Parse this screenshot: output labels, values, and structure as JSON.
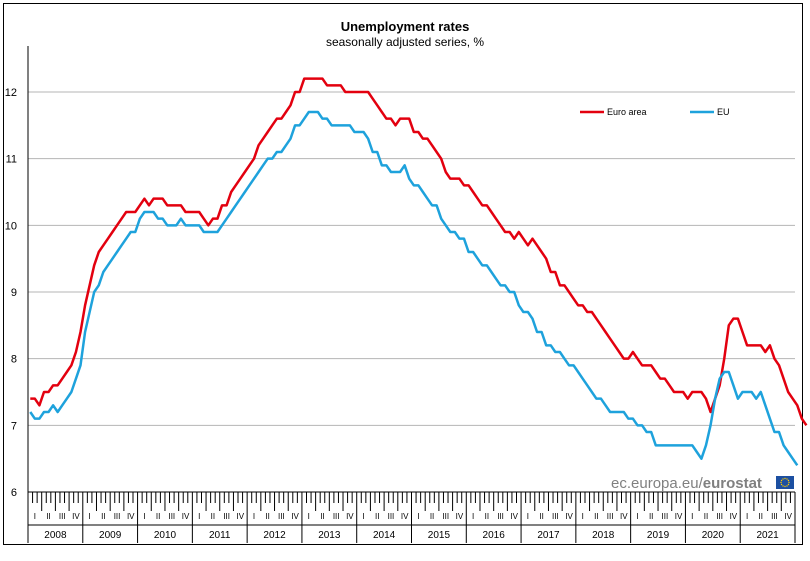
{
  "chart_data": {
    "type": "line",
    "title": "Unemployment rates",
    "subtitle": "seasonally adjusted series, %",
    "xlabel": "",
    "ylabel": "",
    "ylim": [
      6,
      12.6
    ],
    "yticks": [
      6,
      7,
      8,
      9,
      10,
      11,
      12
    ],
    "grid": true,
    "legend": "top-right",
    "x_start": "2008-01",
    "years": [
      "2008",
      "2009",
      "2010",
      "2011",
      "2012",
      "2013",
      "2014",
      "2015",
      "2016",
      "2017",
      "2018",
      "2019",
      "2020",
      "2021"
    ],
    "quarters": [
      "I",
      "II",
      "III",
      "IV"
    ],
    "series": [
      {
        "name": "Euro area",
        "color": "#e3000f",
        "values": [
          7.4,
          7.4,
          7.3,
          7.5,
          7.5,
          7.6,
          7.6,
          7.7,
          7.8,
          7.9,
          8.1,
          8.4,
          8.8,
          9.1,
          9.4,
          9.6,
          9.7,
          9.8,
          9.9,
          10.0,
          10.1,
          10.2,
          10.2,
          10.2,
          10.3,
          10.4,
          10.3,
          10.4,
          10.4,
          10.4,
          10.3,
          10.3,
          10.3,
          10.3,
          10.2,
          10.2,
          10.2,
          10.2,
          10.1,
          10.0,
          10.1,
          10.1,
          10.3,
          10.3,
          10.5,
          10.6,
          10.7,
          10.8,
          10.9,
          11.0,
          11.2,
          11.3,
          11.4,
          11.5,
          11.6,
          11.6,
          11.7,
          11.8,
          12.0,
          12.0,
          12.2,
          12.2,
          12.2,
          12.2,
          12.2,
          12.1,
          12.1,
          12.1,
          12.1,
          12.0,
          12.0,
          12.0,
          12.0,
          12.0,
          12.0,
          11.9,
          11.8,
          11.7,
          11.6,
          11.6,
          11.5,
          11.6,
          11.6,
          11.6,
          11.4,
          11.4,
          11.3,
          11.3,
          11.2,
          11.1,
          11.0,
          10.8,
          10.7,
          10.7,
          10.7,
          10.6,
          10.6,
          10.5,
          10.4,
          10.3,
          10.3,
          10.2,
          10.1,
          10.0,
          9.9,
          9.9,
          9.8,
          9.9,
          9.8,
          9.7,
          9.8,
          9.7,
          9.6,
          9.5,
          9.3,
          9.3,
          9.1,
          9.1,
          9.0,
          8.9,
          8.8,
          8.8,
          8.7,
          8.7,
          8.6,
          8.5,
          8.4,
          8.3,
          8.2,
          8.1,
          8.0,
          8.0,
          8.1,
          8.0,
          7.9,
          7.9,
          7.9,
          7.8,
          7.7,
          7.7,
          7.6,
          7.5,
          7.5,
          7.5,
          7.4,
          7.5,
          7.5,
          7.5,
          7.4,
          7.2,
          7.4,
          7.6,
          8.0,
          8.5,
          8.6,
          8.6,
          8.4,
          8.2,
          8.2,
          8.2,
          8.2,
          8.1,
          8.2,
          8.0,
          7.9,
          7.7,
          7.5,
          7.4,
          7.3,
          7.1,
          7.0
        ]
      },
      {
        "name": "EU",
        "color": "#1ea2dc",
        "values": [
          7.2,
          7.1,
          7.1,
          7.2,
          7.2,
          7.3,
          7.2,
          7.3,
          7.4,
          7.5,
          7.7,
          7.9,
          8.4,
          8.7,
          9.0,
          9.1,
          9.3,
          9.4,
          9.5,
          9.6,
          9.7,
          9.8,
          9.9,
          9.9,
          10.1,
          10.2,
          10.2,
          10.2,
          10.1,
          10.1,
          10.0,
          10.0,
          10.0,
          10.1,
          10.0,
          10.0,
          10.0,
          10.0,
          9.9,
          9.9,
          9.9,
          9.9,
          10.0,
          10.1,
          10.2,
          10.3,
          10.4,
          10.5,
          10.6,
          10.7,
          10.8,
          10.9,
          11.0,
          11.0,
          11.1,
          11.1,
          11.2,
          11.3,
          11.5,
          11.5,
          11.6,
          11.7,
          11.7,
          11.7,
          11.6,
          11.6,
          11.5,
          11.5,
          11.5,
          11.5,
          11.5,
          11.4,
          11.4,
          11.4,
          11.3,
          11.1,
          11.1,
          10.9,
          10.9,
          10.8,
          10.8,
          10.8,
          10.9,
          10.7,
          10.6,
          10.6,
          10.5,
          10.4,
          10.3,
          10.3,
          10.1,
          10.0,
          9.9,
          9.9,
          9.8,
          9.8,
          9.6,
          9.6,
          9.5,
          9.4,
          9.4,
          9.3,
          9.2,
          9.1,
          9.1,
          9.0,
          9.0,
          8.8,
          8.7,
          8.7,
          8.6,
          8.4,
          8.4,
          8.2,
          8.2,
          8.1,
          8.1,
          8.0,
          7.9,
          7.9,
          7.8,
          7.7,
          7.6,
          7.5,
          7.4,
          7.4,
          7.3,
          7.2,
          7.2,
          7.2,
          7.2,
          7.1,
          7.1,
          7.0,
          7.0,
          6.9,
          6.9,
          6.7,
          6.7,
          6.7,
          6.7,
          6.7,
          6.7,
          6.7,
          6.7,
          6.7,
          6.6,
          6.5,
          6.7,
          7.0,
          7.4,
          7.7,
          7.8,
          7.8,
          7.6,
          7.4,
          7.5,
          7.5,
          7.5,
          7.4,
          7.5,
          7.3,
          7.1,
          6.9,
          6.9,
          6.7,
          6.6,
          6.5,
          6.4
        ]
      }
    ]
  },
  "watermark": {
    "site": "ec.europa.eu/",
    "brand": "eurostat"
  },
  "colors": {
    "grid": "#b4b4b4",
    "eu_flag": "#1c4fa1",
    "eu_star": "#ffcc00"
  }
}
